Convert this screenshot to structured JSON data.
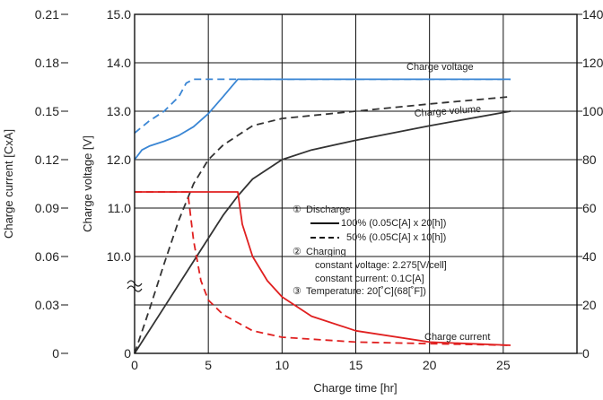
{
  "chart_data": {
    "type": "line",
    "title": "",
    "xlabel": "Charge time [hr]",
    "ylabel_left_outer": "Charge current [CxA]",
    "ylabel_left_inner": "Charge voltage [V]",
    "xlim": [
      0,
      30
    ],
    "ylim_voltage": [
      8,
      15
    ],
    "ylim_current": [
      0,
      0.21
    ],
    "ylim_volume": [
      0,
      140
    ],
    "grid": true,
    "x_ticks": [
      "0",
      "5",
      "10",
      "15",
      "20",
      "25"
    ],
    "y_ticks_current": [
      "0",
      "0.03",
      "0.06",
      "0.09",
      "0.12",
      "0.15",
      "0.18",
      "0.21"
    ],
    "y_ticks_voltage": [
      "10.0",
      "11.0",
      "12.0",
      "13.0",
      "14.0",
      "15.0"
    ],
    "y_ticks_volume": [
      "0",
      "20",
      "40",
      "60",
      "80",
      "100",
      "120",
      "140"
    ],
    "curve_labels": {
      "voltage": "Charge voltage",
      "volume": "Charge volume",
      "current": "Charge current"
    },
    "legend": {
      "marker1": "①",
      "marker2": "②",
      "marker3": "③",
      "discharge_title": "Discharge",
      "line_100": "100% (0.05C[A] x 20[h])",
      "line_50": "50% (0.05C[A] x 10[h])",
      "charging_title": "Charging",
      "cv": "constant voltage: 2.275[V/cell]",
      "cc": "constant current: 0.1C[A]",
      "temperature": "Temperature: 20[˚C](68[˚F])"
    },
    "series": [
      {
        "quantity": "charge_voltage",
        "discharge": "100%",
        "unit": "V",
        "color": "#3a86d4",
        "dash": false,
        "x": [
          0,
          0.5,
          1,
          2,
          3,
          4,
          5,
          6,
          7,
          10,
          15,
          20,
          25.5
        ],
        "y": [
          12.0,
          12.2,
          12.28,
          12.38,
          12.5,
          12.68,
          12.95,
          13.3,
          13.66,
          13.66,
          13.66,
          13.66,
          13.66
        ]
      },
      {
        "quantity": "charge_voltage",
        "discharge": "50%",
        "unit": "V",
        "color": "#3a86d4",
        "dash": true,
        "x": [
          0,
          1,
          2,
          3,
          3.5,
          4,
          7,
          10,
          15,
          20,
          25.5
        ],
        "y": [
          12.55,
          12.8,
          13.0,
          13.3,
          13.58,
          13.66,
          13.66,
          13.66,
          13.66,
          13.66,
          13.66
        ]
      },
      {
        "quantity": "charge_volume",
        "discharge": "100%",
        "unit": "%",
        "color": "#333333",
        "dash": false,
        "x": [
          0,
          2,
          4,
          6,
          7,
          8,
          10,
          12,
          15,
          20,
          25.5
        ],
        "y": [
          0,
          19,
          38,
          57,
          65,
          72,
          80,
          84,
          88,
          94,
          100
        ]
      },
      {
        "quantity": "charge_volume",
        "discharge": "50%",
        "unit": "%",
        "color": "#333333",
        "dash": true,
        "x": [
          0,
          1,
          2,
          3,
          4,
          5,
          6,
          7,
          8,
          10,
          15,
          20,
          25.5
        ],
        "y": [
          0,
          18,
          37,
          55,
          70,
          80,
          86,
          90,
          94,
          97,
          100,
          103,
          106
        ]
      },
      {
        "quantity": "charge_current",
        "discharge": "100%",
        "unit": "CxA",
        "color": "#e02020",
        "dash": false,
        "x": [
          0,
          2,
          4,
          6,
          7,
          7.3,
          8,
          9,
          10,
          12,
          15,
          20,
          25.5
        ],
        "y": [
          0.1,
          0.1,
          0.1,
          0.1,
          0.1,
          0.08,
          0.06,
          0.045,
          0.035,
          0.023,
          0.014,
          0.007,
          0.005
        ]
      },
      {
        "quantity": "charge_current",
        "discharge": "50%",
        "unit": "CxA",
        "color": "#e02020",
        "dash": true,
        "x": [
          0,
          1,
          2,
          3,
          3.6,
          4,
          4.5,
          5,
          6,
          8,
          10,
          15,
          20,
          25.5
        ],
        "y": [
          0.1,
          0.1,
          0.1,
          0.1,
          0.1,
          0.07,
          0.045,
          0.033,
          0.024,
          0.014,
          0.01,
          0.007,
          0.006,
          0.005
        ]
      }
    ]
  }
}
